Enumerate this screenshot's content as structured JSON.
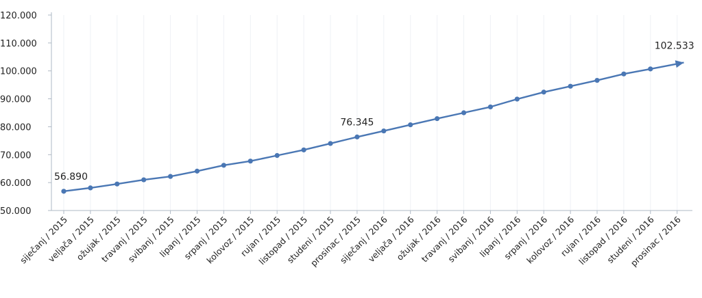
{
  "chart_data": {
    "type": "line",
    "title": "",
    "xlabel": "",
    "ylabel": "",
    "ylim": [
      50000,
      120000
    ],
    "y_ticks": [
      50000,
      60000,
      70000,
      80000,
      90000,
      100000,
      110000,
      120000
    ],
    "y_tick_labels": [
      "50.000",
      "60.000",
      "70.000",
      "80.000",
      "90.000",
      "100.000",
      "110.000",
      "120.000"
    ],
    "grid": "vertical",
    "categories": [
      "siječanj / 2015",
      "veljača / 2015",
      "ožujak / 2015",
      "travanj / 2015",
      "svibanj / 2015",
      "lipanj / 2015",
      "srpanj / 2015",
      "kolovoz / 2015",
      "rujan / 2015",
      "listopad / 2015",
      "studeni / 2015",
      "prosinac / 2015",
      "siječanj / 2016",
      "veljača / 2016",
      "ožujak / 2016",
      "travanj / 2016",
      "svibanj / 2016",
      "lipanj / 2016",
      "srpanj / 2016",
      "kolovoz / 2016",
      "rujan / 2016",
      "listopad / 2016",
      "studeni / 2016",
      "prosinac / 2016"
    ],
    "series": [
      {
        "values": [
          56890,
          58100,
          59500,
          61000,
          62200,
          64100,
          66200,
          67700,
          69700,
          71700,
          74000,
          76345,
          78500,
          80700,
          82900,
          85000,
          87100,
          89900,
          92400,
          94500,
          96600,
          98900,
          100700,
          102533
        ],
        "color": "#4a77b4"
      }
    ],
    "annotations": [
      {
        "index": 0,
        "text": "56.890"
      },
      {
        "index": 11,
        "text": "76.345"
      },
      {
        "index": 23,
        "text": "102.533"
      }
    ],
    "colors": {
      "axis": "#aeb8c4",
      "grid": "#eef1f5",
      "line": "#4a77b4"
    }
  }
}
